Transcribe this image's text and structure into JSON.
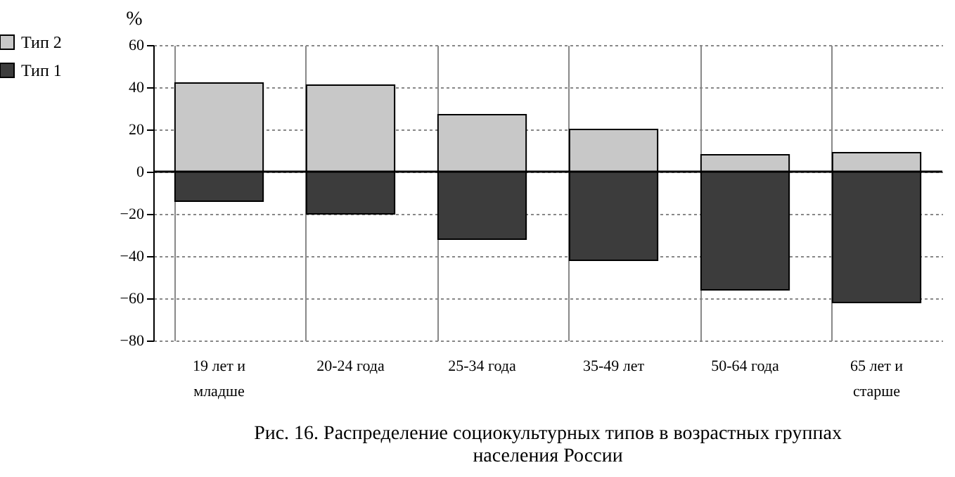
{
  "chart_data": {
    "type": "bar",
    "stacked": true,
    "title": "Рис. 16. Распределение социокультурных типов в  возрастных группах населения России",
    "ylabel": "%",
    "categories": [
      "19 лет и младше",
      "20-24 года",
      "25-34 года",
      "35-49 лет",
      "50-64 года",
      "65 лет и старше"
    ],
    "series": [
      {
        "name": "Тип 2",
        "color": "#c8c8c8",
        "values": [
          42,
          41,
          27,
          20,
          8,
          9
        ]
      },
      {
        "name": "Тип 1",
        "color": "#3c3c3c",
        "values": [
          -14,
          -20,
          -32,
          -42,
          -56,
          -62
        ]
      }
    ],
    "ylim": [
      -80,
      60
    ],
    "yticks": [
      -80,
      -60,
      -40,
      -20,
      0,
      20,
      40,
      60
    ],
    "grid": true,
    "legend": "left"
  }
}
